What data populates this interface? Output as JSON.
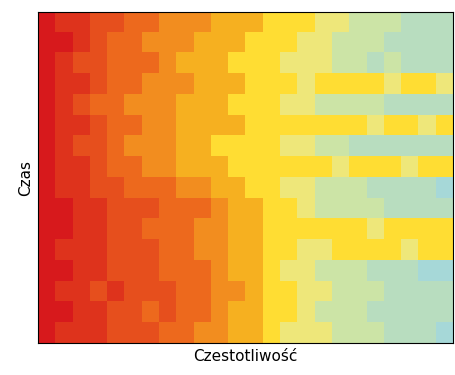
{
  "chart_data": {
    "type": "heatmap",
    "x_label": "Czestotliwość",
    "y_label": "Czas",
    "tick_labels": false,
    "cells": [
      [
        0,
        1,
        1,
        2,
        2,
        3,
        3,
        4,
        4,
        4,
        5,
        5,
        5,
        6,
        6,
        6,
        7,
        7,
        8,
        8,
        8,
        9,
        9,
        9
      ],
      [
        0,
        0,
        1,
        2,
        3,
        3,
        4,
        4,
        4,
        5,
        5,
        5,
        6,
        6,
        6,
        7,
        7,
        8,
        8,
        8,
        9,
        9,
        9,
        9
      ],
      [
        0,
        1,
        2,
        2,
        3,
        3,
        3,
        4,
        5,
        5,
        5,
        6,
        6,
        6,
        7,
        7,
        7,
        8,
        8,
        9,
        8,
        9,
        9,
        9
      ],
      [
        0,
        1,
        1,
        2,
        3,
        3,
        4,
        4,
        4,
        5,
        5,
        5,
        6,
        6,
        6,
        7,
        6,
        6,
        6,
        6,
        7,
        6,
        6,
        7
      ],
      [
        0,
        1,
        2,
        3,
        3,
        4,
        4,
        4,
        5,
        5,
        5,
        6,
        6,
        6,
        7,
        7,
        8,
        8,
        8,
        8,
        9,
        9,
        9,
        9
      ],
      [
        0,
        1,
        1,
        2,
        3,
        3,
        4,
        4,
        5,
        5,
        5,
        5,
        6,
        6,
        6,
        6,
        6,
        6,
        6,
        7,
        6,
        6,
        7,
        6
      ],
      [
        0,
        1,
        2,
        2,
        3,
        4,
        4,
        4,
        5,
        5,
        6,
        6,
        6,
        6,
        7,
        7,
        8,
        8,
        9,
        9,
        9,
        9,
        9,
        9
      ],
      [
        0,
        1,
        1,
        2,
        3,
        3,
        4,
        4,
        5,
        5,
        5,
        6,
        6,
        6,
        6,
        6,
        6,
        7,
        6,
        6,
        6,
        7,
        6,
        6
      ],
      [
        0,
        1,
        1,
        2,
        2,
        3,
        3,
        3,
        4,
        4,
        5,
        5,
        6,
        6,
        7,
        7,
        8,
        8,
        8,
        9,
        9,
        9,
        9,
        10
      ],
      [
        0,
        0,
        1,
        1,
        2,
        2,
        2,
        3,
        3,
        3,
        4,
        5,
        5,
        6,
        6,
        7,
        8,
        8,
        8,
        8,
        9,
        9,
        9,
        9
      ],
      [
        0,
        0,
        1,
        1,
        2,
        2,
        3,
        3,
        3,
        4,
        4,
        5,
        5,
        6,
        6,
        6,
        6,
        6,
        6,
        7,
        6,
        6,
        6,
        6
      ],
      [
        0,
        1,
        1,
        1,
        2,
        2,
        2,
        3,
        3,
        4,
        4,
        5,
        5,
        6,
        6,
        7,
        7,
        6,
        6,
        6,
        6,
        7,
        6,
        6
      ],
      [
        0,
        0,
        1,
        1,
        2,
        2,
        2,
        3,
        3,
        3,
        4,
        5,
        5,
        6,
        7,
        7,
        8,
        8,
        8,
        9,
        9,
        9,
        10,
        10
      ],
      [
        0,
        1,
        1,
        2,
        1,
        2,
        2,
        2,
        3,
        3,
        4,
        4,
        5,
        6,
        6,
        7,
        7,
        8,
        8,
        8,
        9,
        9,
        9,
        9
      ],
      [
        0,
        0,
        1,
        1,
        2,
        2,
        3,
        2,
        3,
        3,
        4,
        5,
        5,
        6,
        6,
        7,
        8,
        8,
        8,
        9,
        9,
        9,
        9,
        9
      ],
      [
        0,
        1,
        1,
        1,
        2,
        2,
        2,
        3,
        3,
        4,
        4,
        5,
        5,
        6,
        7,
        7,
        7,
        8,
        8,
        8,
        9,
        9,
        9,
        10
      ]
    ]
  }
}
